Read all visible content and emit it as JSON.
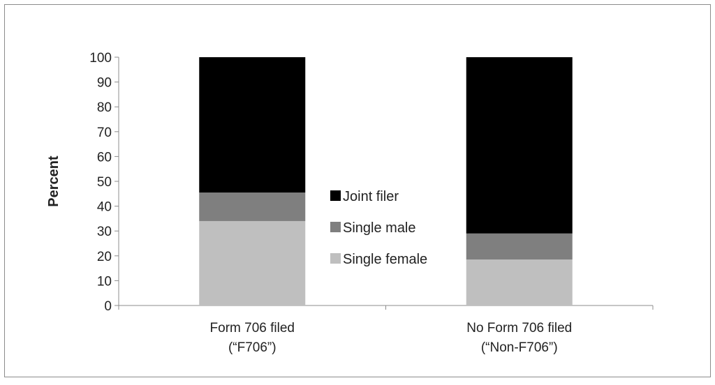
{
  "chart_data": {
    "type": "bar",
    "stacked": true,
    "categories": [
      [
        "Form 706 filed",
        "(“F706”)"
      ],
      [
        "No Form 706 filed",
        "(“Non-F706”)"
      ]
    ],
    "series": [
      {
        "name": "Single female",
        "color": "#bfbfbf",
        "values": [
          34,
          18.5
        ]
      },
      {
        "name": "Single male",
        "color": "#7f7f7f",
        "values": [
          11.5,
          10.5
        ]
      },
      {
        "name": "Joint filer",
        "color": "#000000",
        "values": [
          54.5,
          71
        ]
      }
    ],
    "legend_order": [
      "Joint filer",
      "Single male",
      "Single female"
    ],
    "ylabel": "Percent",
    "xlabel": "",
    "ylim": [
      0,
      100
    ],
    "yticks": [
      0,
      10,
      20,
      30,
      40,
      50,
      60,
      70,
      80,
      90,
      100
    ],
    "grid": false,
    "legend_position": "center"
  }
}
